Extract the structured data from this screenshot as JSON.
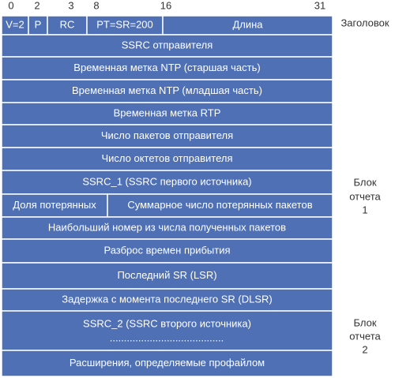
{
  "bit_positions": [
    "0",
    "2",
    "3",
    "8",
    "16",
    "31"
  ],
  "rows": [
    [
      "V=2",
      "P",
      "RC",
      "PT=SR=200",
      "Длина"
    ],
    [
      "SSRC отправителя"
    ],
    [
      "Временная метка NTP (старшая часть)"
    ],
    [
      "Временная метка NTP (младшая часть)"
    ],
    [
      "Временная метка RTP"
    ],
    [
      "Число пакетов отправителя"
    ],
    [
      "Число октетов отправителя"
    ],
    [
      "SSRC_1 (SSRC первого источника)"
    ],
    [
      "Доля потерянных",
      "Суммарное число потерянных пакетов"
    ],
    [
      "Наибольший номер из числа полученных пакетов"
    ],
    [
      "Разброс времен прибытия"
    ],
    [
      "Последний SR (LSR)"
    ],
    [
      "Задержка с момента последнего SR (DLSR)"
    ],
    [
      "SSRC_2 (SSRC второго источника)"
    ],
    [
      "Расширения, определяемые профайлом"
    ]
  ],
  "continuation": "........................................",
  "side_labels": [
    [
      "Заголовок"
    ],
    [
      "Блок",
      "отчета",
      "1"
    ],
    [
      "Блок",
      "отчета",
      "2"
    ]
  ]
}
